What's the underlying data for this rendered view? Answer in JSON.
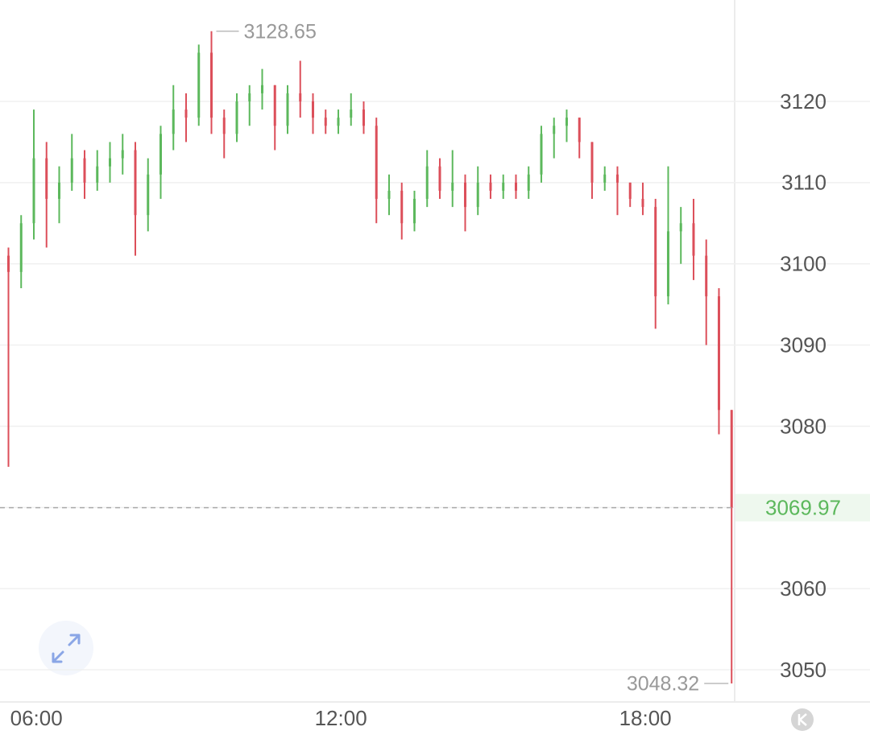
{
  "chart_data": {
    "type": "candlestick",
    "x": [
      327,
      342,
      357,
      372,
      387,
      402,
      417,
      432,
      447,
      462,
      477,
      492,
      507,
      522,
      537,
      552,
      567,
      582,
      597,
      612,
      627,
      642,
      657,
      672,
      687,
      702,
      717,
      732,
      747,
      762,
      777,
      792,
      807,
      822,
      837,
      852,
      867,
      882,
      897,
      912,
      927,
      942,
      957,
      972,
      987,
      1002,
      1017,
      1032,
      1047,
      1062,
      1077,
      1092,
      1107,
      1122,
      1137,
      1152,
      1167,
      1182
    ],
    "open": [
      3101,
      3099,
      3105,
      3113,
      3108,
      3110,
      3113,
      3110,
      3112,
      3113,
      3114,
      3106,
      3111,
      3116,
      3119,
      3118,
      3126,
      3118,
      3116,
      3120,
      3121,
      3122,
      3117,
      3121,
      3120,
      3118,
      3117,
      3118,
      3119,
      3117,
      3108,
      3109,
      3105,
      3108,
      3112,
      3109,
      3110,
      3107,
      3110,
      3109,
      3110,
      3109,
      3111,
      3116,
      3117,
      3118,
      3115,
      3110,
      3111,
      3110,
      3108,
      3107,
      3096,
      3104,
      3105,
      3101,
      3096,
      3082
    ],
    "high": [
      3102,
      3106,
      3119,
      3115,
      3112,
      3116,
      3114,
      3114,
      3115,
      3116,
      3115,
      3113,
      3117,
      3122,
      3121,
      3127,
      3128.65,
      3119,
      3121,
      3122,
      3124,
      3122,
      3122,
      3125,
      3121,
      3119,
      3119,
      3121,
      3120,
      3118,
      3111,
      3110,
      3109,
      3114,
      3113,
      3114,
      3111,
      3112,
      3111,
      3111,
      3111,
      3112,
      3117,
      3118,
      3119,
      3118,
      3115,
      3112,
      3112,
      3110,
      3110,
      3108,
      3112,
      3107,
      3108,
      3103,
      3097,
      3082
    ],
    "low": [
      3075,
      3097,
      3103,
      3102,
      3105,
      3109,
      3108,
      3109,
      3110,
      3111,
      3101,
      3104,
      3108,
      3114,
      3115,
      3117,
      3116,
      3113,
      3115,
      3117,
      3119,
      3114,
      3116,
      3118,
      3116,
      3116,
      3116,
      3117,
      3116,
      3105,
      3106,
      3103,
      3104,
      3107,
      3108,
      3107,
      3104,
      3106,
      3108,
      3108,
      3108,
      3108,
      3110,
      3113,
      3115,
      3113,
      3108,
      3109,
      3106,
      3107,
      3106,
      3092,
      3095,
      3100,
      3098,
      3090,
      3079,
      3048.32
    ],
    "close": [
      3099,
      3105,
      3113,
      3108,
      3110,
      3113,
      3110,
      3112,
      3113,
      3114,
      3106,
      3111,
      3116,
      3119,
      3118,
      3126,
      3118,
      3116,
      3120,
      3121,
      3122,
      3117,
      3121,
      3120,
      3118,
      3117,
      3118,
      3119,
      3117,
      3108,
      3109,
      3105,
      3108,
      3112,
      3109,
      3110,
      3107,
      3110,
      3109,
      3110,
      3109,
      3111,
      3116,
      3117,
      3118,
      3115,
      3110,
      3111,
      3110,
      3108,
      3107,
      3096,
      3104,
      3105,
      3101,
      3096,
      3082,
      3069.97
    ],
    "up_color": "#5cb85c",
    "down_color": "#dc4f5a",
    "xlim": [
      317,
      1185.6
    ],
    "xticks": [
      {
        "value": 360,
        "label": "06:00"
      },
      {
        "value": 720,
        "label": "12:00"
      },
      {
        "value": 1080,
        "label": "18:00"
      }
    ],
    "ylim": [
      3046.04,
      3132.49
    ],
    "yticks": [
      3050,
      3060,
      3070,
      3080,
      3090,
      3100,
      3110,
      3120
    ],
    "grid": true
  }
}
